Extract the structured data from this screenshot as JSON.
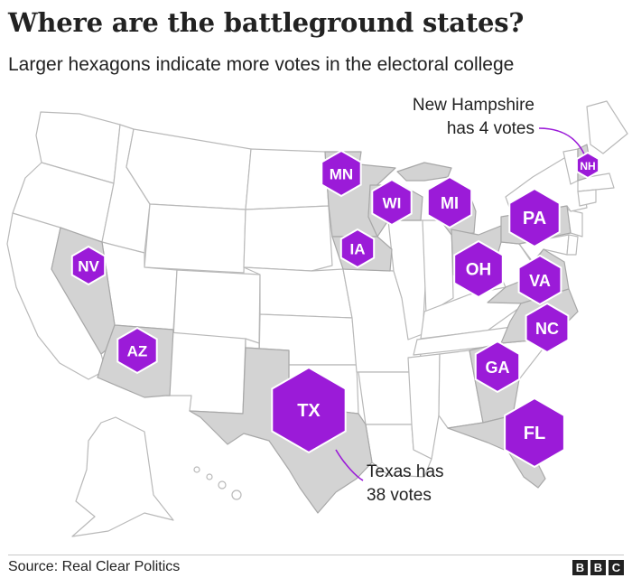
{
  "title": "Where are the battleground states?",
  "subtitle": "Larger hexagons indicate more votes in the electoral college",
  "source": "Source: Real Clear Politics",
  "logo_letters": [
    "B",
    "B",
    "C"
  ],
  "colors": {
    "battleground_hex": "#9b1bd8",
    "battleground_state_fill": "#d3d3d3",
    "other_state_fill": "#ffffff",
    "state_border": "#b9b9b9"
  },
  "states": [
    {
      "abbr": "NH",
      "votes": 4
    },
    {
      "abbr": "MN"
    },
    {
      "abbr": "WI"
    },
    {
      "abbr": "MI"
    },
    {
      "abbr": "PA"
    },
    {
      "abbr": "IA"
    },
    {
      "abbr": "NV"
    },
    {
      "abbr": "OH"
    },
    {
      "abbr": "VA"
    },
    {
      "abbr": "NC"
    },
    {
      "abbr": "AZ"
    },
    {
      "abbr": "GA"
    },
    {
      "abbr": "TX",
      "votes": 38
    },
    {
      "abbr": "FL"
    }
  ],
  "annotations": {
    "nh": [
      "New Hampshire",
      "has 4 votes"
    ],
    "tx": [
      "Texas has",
      "38 votes"
    ]
  }
}
